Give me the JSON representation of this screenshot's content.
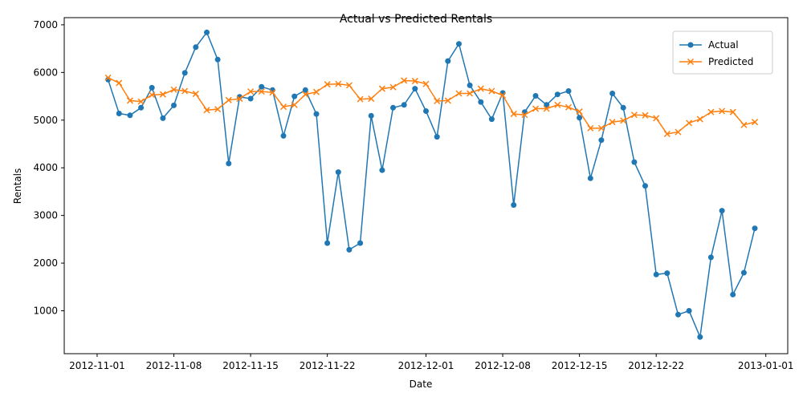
{
  "chart_data": {
    "type": "line",
    "title": "Actual vs Predicted Rentals",
    "xlabel": "Date",
    "ylabel": "Rentals",
    "x": [
      "2012-11-02",
      "2012-11-03",
      "2012-11-04",
      "2012-11-05",
      "2012-11-06",
      "2012-11-07",
      "2012-11-08",
      "2012-11-09",
      "2012-11-10",
      "2012-11-11",
      "2012-11-12",
      "2012-11-13",
      "2012-11-14",
      "2012-11-15",
      "2012-11-16",
      "2012-11-17",
      "2012-11-18",
      "2012-11-19",
      "2012-11-20",
      "2012-11-21",
      "2012-11-22",
      "2012-11-23",
      "2012-11-24",
      "2012-11-25",
      "2012-11-26",
      "2012-11-27",
      "2012-11-28",
      "2012-11-29",
      "2012-11-30",
      "2012-12-01",
      "2012-12-02",
      "2012-12-03",
      "2012-12-04",
      "2012-12-05",
      "2012-12-06",
      "2012-12-07",
      "2012-12-08",
      "2012-12-09",
      "2012-12-10",
      "2012-12-11",
      "2012-12-12",
      "2012-12-13",
      "2012-12-14",
      "2012-12-15",
      "2012-12-16",
      "2012-12-17",
      "2012-12-18",
      "2012-12-19",
      "2012-12-20",
      "2012-12-21",
      "2012-12-22",
      "2012-12-23",
      "2012-12-24",
      "2012-12-25",
      "2012-12-26",
      "2012-12-27",
      "2012-12-28",
      "2012-12-29",
      "2012-12-30",
      "2012-12-31"
    ],
    "series": [
      {
        "name": "Actual",
        "color": "#1f77b4",
        "marker": "circle",
        "values": [
          5850,
          5140,
          5100,
          5260,
          5680,
          5040,
          5310,
          5990,
          6530,
          6840,
          6270,
          4090,
          5490,
          5450,
          5700,
          5630,
          4670,
          5500,
          5630,
          5130,
          2420,
          3910,
          2280,
          2420,
          5090,
          3950,
          5260,
          5320,
          5660,
          5190,
          4650,
          6240,
          6600,
          5730,
          5380,
          5020,
          5570,
          3220,
          5170,
          5510,
          5320,
          5540,
          5610,
          5050,
          3780,
          4580,
          5560,
          5260,
          4120,
          3620,
          1760,
          1790,
          920,
          1000,
          450,
          2120,
          3100,
          1340,
          1800,
          2730
        ]
      },
      {
        "name": "Predicted",
        "color": "#ff7f0e",
        "marker": "x",
        "values": [
          5890,
          5780,
          5410,
          5390,
          5530,
          5540,
          5640,
          5610,
          5550,
          5210,
          5230,
          5420,
          5450,
          5600,
          5600,
          5580,
          5280,
          5320,
          5540,
          5590,
          5750,
          5760,
          5730,
          5440,
          5450,
          5660,
          5690,
          5830,
          5820,
          5760,
          5400,
          5410,
          5560,
          5560,
          5660,
          5610,
          5520,
          5130,
          5110,
          5240,
          5240,
          5320,
          5270,
          5180,
          4830,
          4830,
          4960,
          4990,
          5110,
          5100,
          5040,
          4710,
          4750,
          4940,
          5020,
          5170,
          5190,
          5170,
          4900,
          4960
        ]
      }
    ],
    "xticks": [
      "2012-11-01",
      "2012-11-08",
      "2012-11-15",
      "2012-11-22",
      "2012-12-01",
      "2012-12-08",
      "2012-12-15",
      "2012-12-22",
      "2013-01-01"
    ],
    "yticks": [
      1000,
      2000,
      3000,
      4000,
      5000,
      6000,
      7000
    ],
    "xlim": [
      "2012-10-29",
      "2013-01-03"
    ],
    "ylim": [
      100,
      7150
    ],
    "grid": false,
    "legend_position": "top-right"
  }
}
